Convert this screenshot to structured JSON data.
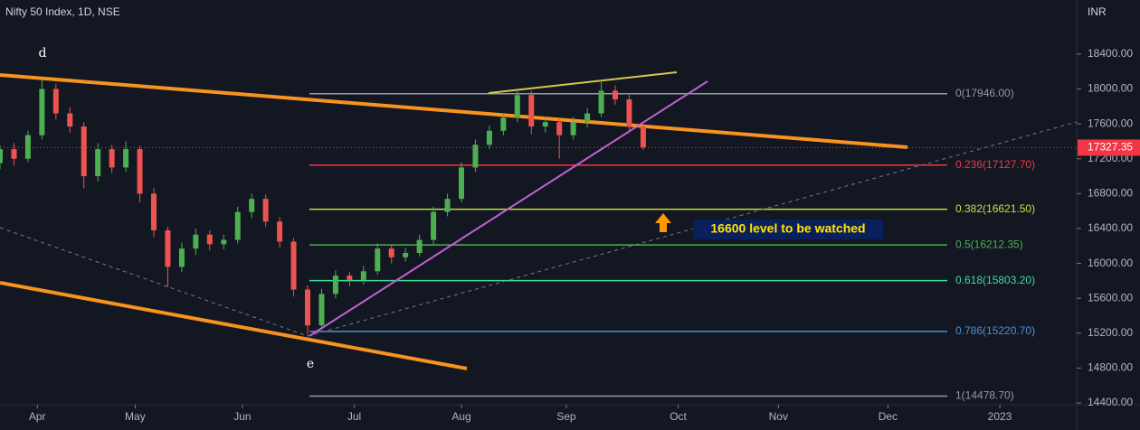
{
  "chart_data": {
    "type": "candlestick",
    "title": "Nifty 50 Index, 1D, NSE",
    "currency": "INR",
    "x": [
      0,
      3,
      6,
      9,
      12,
      15,
      18,
      21,
      24,
      27,
      30,
      33,
      36,
      39,
      42,
      45,
      48,
      51,
      54,
      57,
      60,
      63,
      66,
      69,
      72,
      75,
      78,
      81,
      84,
      87,
      90,
      93,
      96,
      99,
      102,
      105,
      108,
      111,
      114,
      117,
      120,
      123,
      126,
      129,
      132,
      135,
      138
    ],
    "ohlc": [
      [
        17150,
        17350,
        17080,
        17310
      ],
      [
        17310,
        17380,
        17120,
        17200
      ],
      [
        17200,
        17520,
        17160,
        17470
      ],
      [
        17470,
        18110,
        17420,
        18000
      ],
      [
        18000,
        18060,
        17650,
        17720
      ],
      [
        17720,
        17790,
        17500,
        17570
      ],
      [
        17570,
        17620,
        16860,
        17000
      ],
      [
        17000,
        17380,
        16940,
        17310
      ],
      [
        17310,
        17360,
        17040,
        17100
      ],
      [
        17100,
        17400,
        17050,
        17310
      ],
      [
        17310,
        17350,
        16700,
        16800
      ],
      [
        16800,
        16860,
        16300,
        16380
      ],
      [
        16380,
        16420,
        15730,
        15960
      ],
      [
        15960,
        16240,
        15900,
        16170
      ],
      [
        16170,
        16400,
        16100,
        16330
      ],
      [
        16330,
        16380,
        16150,
        16220
      ],
      [
        16220,
        16330,
        16160,
        16270
      ],
      [
        16270,
        16650,
        16230,
        16590
      ],
      [
        16590,
        16800,
        16520,
        16740
      ],
      [
        16740,
        16790,
        16420,
        16480
      ],
      [
        16480,
        16530,
        16180,
        16250
      ],
      [
        16250,
        16290,
        15620,
        15700
      ],
      [
        15700,
        15750,
        15180,
        15290
      ],
      [
        15290,
        15710,
        15240,
        15650
      ],
      [
        15650,
        15920,
        15600,
        15860
      ],
      [
        15860,
        15900,
        15740,
        15810
      ],
      [
        15810,
        15970,
        15760,
        15910
      ],
      [
        15910,
        16230,
        15870,
        16170
      ],
      [
        16170,
        16220,
        16000,
        16070
      ],
      [
        16070,
        16180,
        16020,
        16120
      ],
      [
        16120,
        16330,
        16080,
        16270
      ],
      [
        16270,
        16650,
        16220,
        16590
      ],
      [
        16590,
        16800,
        16540,
        16740
      ],
      [
        16740,
        17160,
        16700,
        17100
      ],
      [
        17100,
        17420,
        17050,
        17360
      ],
      [
        17360,
        17580,
        17310,
        17520
      ],
      [
        17520,
        17720,
        17470,
        17670
      ],
      [
        17670,
        17990,
        17620,
        17930
      ],
      [
        17930,
        17980,
        17480,
        17570
      ],
      [
        17570,
        17680,
        17500,
        17620
      ],
      [
        17620,
        17660,
        17200,
        17470
      ],
      [
        17470,
        17680,
        17420,
        17620
      ],
      [
        17620,
        17780,
        17560,
        17720
      ],
      [
        17720,
        18100,
        17680,
        17980
      ],
      [
        17980,
        18040,
        17820,
        17880
      ],
      [
        17880,
        17930,
        17500,
        17570
      ],
      [
        17570,
        17600,
        17300,
        17330
      ]
    ],
    "up_color": "#4caf50",
    "down_color": "#ef5350",
    "xlim": [
      0,
      231
    ],
    "xticks": [
      {
        "value": 8,
        "label": "Apr"
      },
      {
        "value": 29,
        "label": "May"
      },
      {
        "value": 52,
        "label": "Jun"
      },
      {
        "value": 76,
        "label": "Jul"
      },
      {
        "value": 99,
        "label": "Aug"
      },
      {
        "value": 121.5,
        "label": "Sep"
      },
      {
        "value": 145.5,
        "label": "Oct"
      },
      {
        "value": 167,
        "label": "Nov"
      },
      {
        "value": 190.5,
        "label": "Dec"
      },
      {
        "value": 214.5,
        "label": "2023"
      }
    ],
    "ylim": [
      14380,
      19020
    ],
    "yticks": [
      {
        "value": 14400,
        "label": "14400.00"
      },
      {
        "value": 14800,
        "label": "14800.00"
      },
      {
        "value": 15200,
        "label": "15200.00"
      },
      {
        "value": 15600,
        "label": "15600.00"
      },
      {
        "value": 16000,
        "label": "16000.00"
      },
      {
        "value": 16400,
        "label": "16400.00"
      },
      {
        "value": 16800,
        "label": "16800.00"
      },
      {
        "value": 17200,
        "label": "17200.00"
      },
      {
        "value": 17600,
        "label": "17600.00"
      },
      {
        "value": 18000,
        "label": "18000.00"
      },
      {
        "value": 18400,
        "label": "18400.00"
      }
    ],
    "last_price": 17327.35,
    "fib_levels": [
      {
        "value": 17946.0,
        "label": "0(17946.00)",
        "color": "#9598a1"
      },
      {
        "value": 17127.7,
        "label": "0.236(17127.70)",
        "color": "#f23645"
      },
      {
        "value": 16621.5,
        "label": "0.382(16621.50)",
        "color": "#c0e040"
      },
      {
        "value": 16212.35,
        "label": "0.5(16212.35)",
        "color": "#4caf50"
      },
      {
        "value": 15803.2,
        "label": "0.618(15803.20)",
        "color": "#3ddc97"
      },
      {
        "value": 15220.7,
        "label": "0.786(15220.70)",
        "color": "#4a90d9"
      },
      {
        "value": 14478.7,
        "label": "1(14478.70)",
        "color": "#9598a1"
      }
    ],
    "annotations": {
      "d": "d",
      "e": "e",
      "note": "16600 level to be watched"
    }
  }
}
